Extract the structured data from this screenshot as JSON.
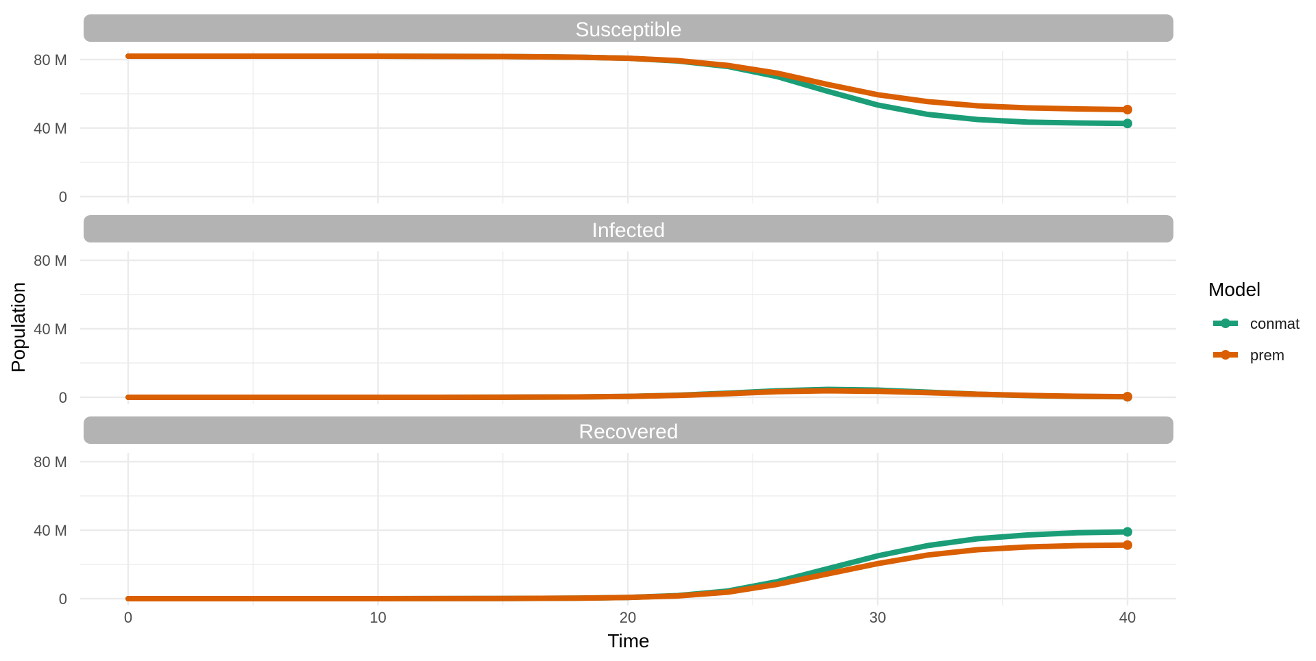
{
  "chart_data": {
    "type": "line",
    "xlabel": "Time",
    "ylabel": "Population",
    "xlim": [
      0,
      40
    ],
    "ylim": [
      0,
      82000000
    ],
    "x_ticks": [
      0,
      10,
      20,
      30,
      40
    ],
    "x_tick_labels": [
      "0",
      "10",
      "20",
      "30",
      "40"
    ],
    "y_ticks": [
      0,
      40000000,
      80000000
    ],
    "y_tick_labels": [
      "0",
      "40 M",
      "80 M"
    ],
    "grid": true,
    "legend": {
      "title": "Model",
      "placement": "right",
      "entries": [
        "conmat",
        "prem"
      ]
    },
    "colors": {
      "conmat": "#1b9e77",
      "prem": "#d95f02",
      "strip": "#b3b3b3",
      "grid": "#ebebeb"
    },
    "x": [
      0,
      5,
      10,
      15,
      18,
      20,
      22,
      24,
      26,
      28,
      30,
      32,
      34,
      36,
      38,
      40
    ],
    "panels": [
      {
        "title": "Susceptible",
        "series": [
          {
            "name": "conmat",
            "values": [
              82000000,
              82000000,
              82000000,
              81800000,
              81400000,
              80800000,
              79200000,
              76000000,
              70000000,
              61500000,
              53500000,
              48000000,
              45000000,
              43500000,
              43000000,
              42700000
            ]
          },
          {
            "name": "prem",
            "values": [
              82000000,
              82000000,
              82000000,
              81800000,
              81400000,
              80800000,
              79400000,
              76600000,
              72000000,
              65500000,
              59500000,
              55500000,
              53000000,
              51800000,
              51200000,
              50800000
            ]
          }
        ]
      },
      {
        "title": "Infected",
        "series": [
          {
            "name": "conmat",
            "values": [
              0,
              0,
              0,
              50000,
              200000,
              500000,
              1200000,
              2400000,
              3800000,
              4600000,
              4200000,
              3000000,
              1800000,
              1000000,
              500000,
              300000
            ]
          },
          {
            "name": "prem",
            "values": [
              0,
              0,
              0,
              50000,
              200000,
              500000,
              1100000,
              2100000,
              3300000,
              3800000,
              3500000,
              2700000,
              1800000,
              1100000,
              600000,
              350000
            ]
          }
        ]
      },
      {
        "title": "Recovered",
        "series": [
          {
            "name": "conmat",
            "values": [
              0,
              0,
              0,
              100000,
              300000,
              700000,
              1800000,
              4500000,
              10000000,
              17500000,
              25000000,
              31000000,
              35000000,
              37200000,
              38500000,
              39000000
            ]
          },
          {
            "name": "prem",
            "values": [
              0,
              0,
              0,
              100000,
              300000,
              700000,
              1600000,
              3800000,
              8400000,
              14500000,
              20500000,
              25500000,
              28600000,
              30200000,
              31000000,
              31300000
            ]
          }
        ]
      }
    ]
  }
}
